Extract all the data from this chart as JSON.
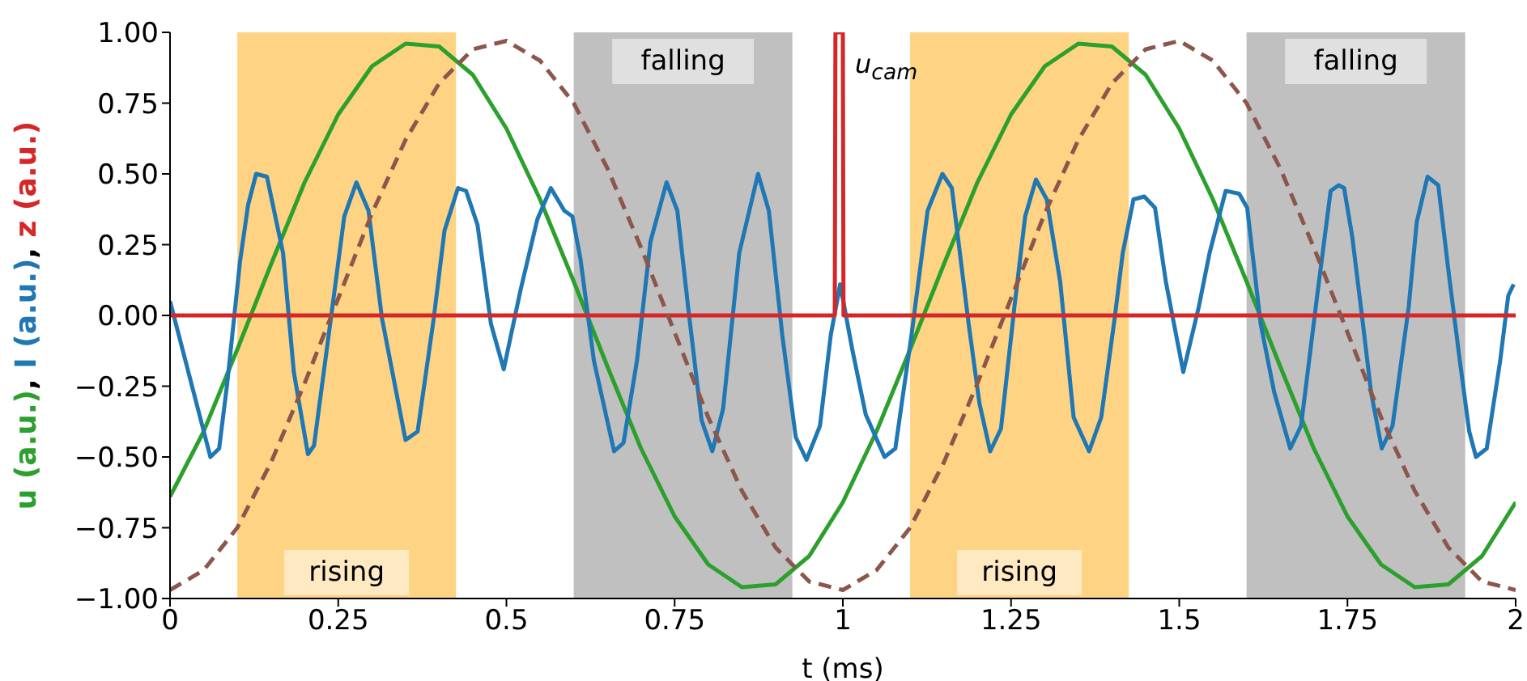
{
  "chart_data": {
    "type": "line",
    "xlabel": "t (ms)",
    "ylabel": "u (a.u.), I (a.u.), z (a.u.)",
    "xlim": [
      0,
      2
    ],
    "ylim": [
      -1,
      1
    ],
    "xticks": [
      0,
      0.25,
      0.5,
      0.75,
      1,
      1.25,
      1.5,
      1.75,
      2
    ],
    "yticks": [
      {
        "value": -1,
        "label": "−1.00"
      },
      {
        "value": -0.75,
        "label": "−0.75"
      },
      {
        "value": -0.5,
        "label": "−0.50"
      },
      {
        "value": -0.25,
        "label": "−0.25"
      },
      {
        "value": 0,
        "label": "0.00"
      },
      {
        "value": 0.25,
        "label": "0.25"
      },
      {
        "value": 0.5,
        "label": "0.50"
      },
      {
        "value": 0.75,
        "label": "0.75"
      },
      {
        "value": 1,
        "label": "1.00"
      }
    ],
    "marker": "none",
    "grid": false,
    "bands": [
      {
        "axis": "x",
        "from": 0.1,
        "to": 0.425,
        "label": "rising",
        "color": "#fed384"
      },
      {
        "axis": "x",
        "from": 0.6,
        "to": 0.925,
        "label": "falling",
        "color": "#c0c0c0"
      },
      {
        "axis": "x",
        "from": 1.1,
        "to": 1.425,
        "label": "rising",
        "color": "#fed384"
      },
      {
        "axis": "x",
        "from": 1.6,
        "to": 1.925,
        "label": "falling",
        "color": "#c0c0c0"
      }
    ],
    "annotations": [
      "u$_{cam}$"
    ],
    "series": [
      {
        "color": "#2ca02c",
        "line_style": "solid",
        "x": [
          0,
          0.05,
          0.1,
          0.15,
          0.2,
          0.25,
          0.3,
          0.35,
          0.4,
          0.45,
          0.5,
          0.55,
          0.6,
          0.65,
          0.7,
          0.75,
          0.8,
          0.85,
          0.9,
          0.95,
          1,
          1.05,
          1.1,
          1.15,
          1.2,
          1.25,
          1.3,
          1.35,
          1.4,
          1.45,
          1.5,
          1.55,
          1.6,
          1.65,
          1.7,
          1.75,
          1.8,
          1.85,
          1.9,
          1.95,
          2
        ],
        "values": [
          -0.64,
          -0.41,
          -0.12,
          0.18,
          0.47,
          0.71,
          0.88,
          0.96,
          0.95,
          0.85,
          0.66,
          0.41,
          0.12,
          -0.18,
          -0.47,
          -0.71,
          -0.88,
          -0.96,
          -0.95,
          -0.85,
          -0.66,
          -0.41,
          -0.12,
          0.18,
          0.47,
          0.71,
          0.88,
          0.96,
          0.95,
          0.85,
          0.66,
          0.41,
          0.12,
          -0.18,
          -0.47,
          -0.71,
          -0.88,
          -0.96,
          -0.95,
          -0.85,
          -0.66
        ]
      },
      {
        "color": "#1f77b4",
        "line_style": "solid",
        "x": [
          0,
          0.06,
          0.073,
          0.085,
          0.104,
          0.116,
          0.128,
          0.144,
          0.168,
          0.184,
          0.205,
          0.214,
          0.238,
          0.259,
          0.277,
          0.295,
          0.315,
          0.35,
          0.368,
          0.392,
          0.408,
          0.428,
          0.44,
          0.457,
          0.477,
          0.496,
          0.521,
          0.546,
          0.566,
          0.586,
          0.598,
          0.61,
          0.63,
          0.66,
          0.674,
          0.694,
          0.714,
          0.738,
          0.754,
          0.77,
          0.79,
          0.806,
          0.822,
          0.846,
          0.874,
          0.89,
          0.91,
          0.93,
          0.946,
          0.966,
          0.982,
          0.996,
          1.014,
          1.034,
          1.062,
          1.078,
          1.102,
          1.126,
          1.148,
          1.162,
          1.187,
          1.203,
          1.219,
          1.235,
          1.255,
          1.271,
          1.287,
          1.303,
          1.323,
          1.343,
          1.366,
          1.384,
          1.404,
          1.416,
          1.432,
          1.448,
          1.464,
          1.48,
          1.506,
          1.529,
          1.545,
          1.569,
          1.589,
          1.601,
          1.621,
          1.641,
          1.665,
          1.681,
          1.705,
          1.725,
          1.737,
          1.745,
          1.757,
          1.773,
          1.785,
          1.801,
          1.817,
          1.841,
          1.853,
          1.869,
          1.885,
          1.901,
          1.917,
          1.931,
          1.941,
          1.957,
          1.977,
          1.989,
          1.997
        ],
        "values": [
          0.05,
          -0.5,
          -0.47,
          -0.24,
          0.19,
          0.39,
          0.5,
          0.49,
          0.22,
          -0.2,
          -0.49,
          -0.46,
          -0.03,
          0.35,
          0.47,
          0.37,
          -0.01,
          -0.44,
          -0.41,
          -0.01,
          0.3,
          0.45,
          0.44,
          0.32,
          -0.03,
          -0.19,
          0.09,
          0.34,
          0.45,
          0.37,
          0.35,
          0.2,
          -0.16,
          -0.48,
          -0.45,
          -0.16,
          0.26,
          0.47,
          0.37,
          0.03,
          -0.37,
          -0.48,
          -0.33,
          0.22,
          0.5,
          0.37,
          -0.07,
          -0.43,
          -0.51,
          -0.39,
          -0.07,
          0.11,
          -0.12,
          -0.35,
          -0.5,
          -0.47,
          -0.07,
          0.37,
          0.5,
          0.45,
          -0.03,
          -0.31,
          -0.48,
          -0.4,
          0.03,
          0.35,
          0.48,
          0.41,
          0.12,
          -0.36,
          -0.48,
          -0.36,
          -0.01,
          0.22,
          0.41,
          0.42,
          0.38,
          0.12,
          -0.2,
          0.03,
          0.22,
          0.44,
          0.43,
          0.38,
          -0.03,
          -0.27,
          -0.47,
          -0.39,
          0.07,
          0.44,
          0.46,
          0.45,
          0.28,
          -0.03,
          -0.27,
          -0.47,
          -0.39,
          0.03,
          0.33,
          0.49,
          0.46,
          0.14,
          -0.16,
          -0.41,
          -0.5,
          -0.47,
          -0.16,
          0.07,
          0.11
        ]
      },
      {
        "color": "#d62728",
        "line_style": "solid",
        "x": [
          0,
          0.988,
          0.989,
          1.0,
          1.001,
          2
        ],
        "values": [
          0,
          0,
          1,
          1,
          0,
          0
        ]
      },
      {
        "color": "#8c564b",
        "line_style": "dashed",
        "x": [
          0,
          0.05,
          0.1,
          0.15,
          0.2,
          0.25,
          0.3,
          0.35,
          0.4,
          0.45,
          0.5,
          0.55,
          0.6,
          0.65,
          0.7,
          0.75,
          0.8,
          0.85,
          0.9,
          0.95,
          1,
          1.05,
          1.1,
          1.15,
          1.2,
          1.25,
          1.3,
          1.35,
          1.4,
          1.45,
          1.5,
          1.55,
          1.6,
          1.65,
          1.7,
          1.75,
          1.8,
          1.85,
          1.9,
          1.95,
          2
        ],
        "values": [
          -0.97,
          -0.9,
          -0.75,
          -0.52,
          -0.24,
          0.06,
          0.36,
          0.62,
          0.82,
          0.94,
          0.97,
          0.9,
          0.75,
          0.52,
          0.24,
          -0.06,
          -0.36,
          -0.62,
          -0.82,
          -0.94,
          -0.97,
          -0.9,
          -0.75,
          -0.52,
          -0.24,
          0.06,
          0.36,
          0.62,
          0.82,
          0.94,
          0.97,
          0.9,
          0.75,
          0.52,
          0.24,
          -0.06,
          -0.36,
          -0.62,
          -0.82,
          -0.94,
          -0.97
        ]
      }
    ]
  }
}
